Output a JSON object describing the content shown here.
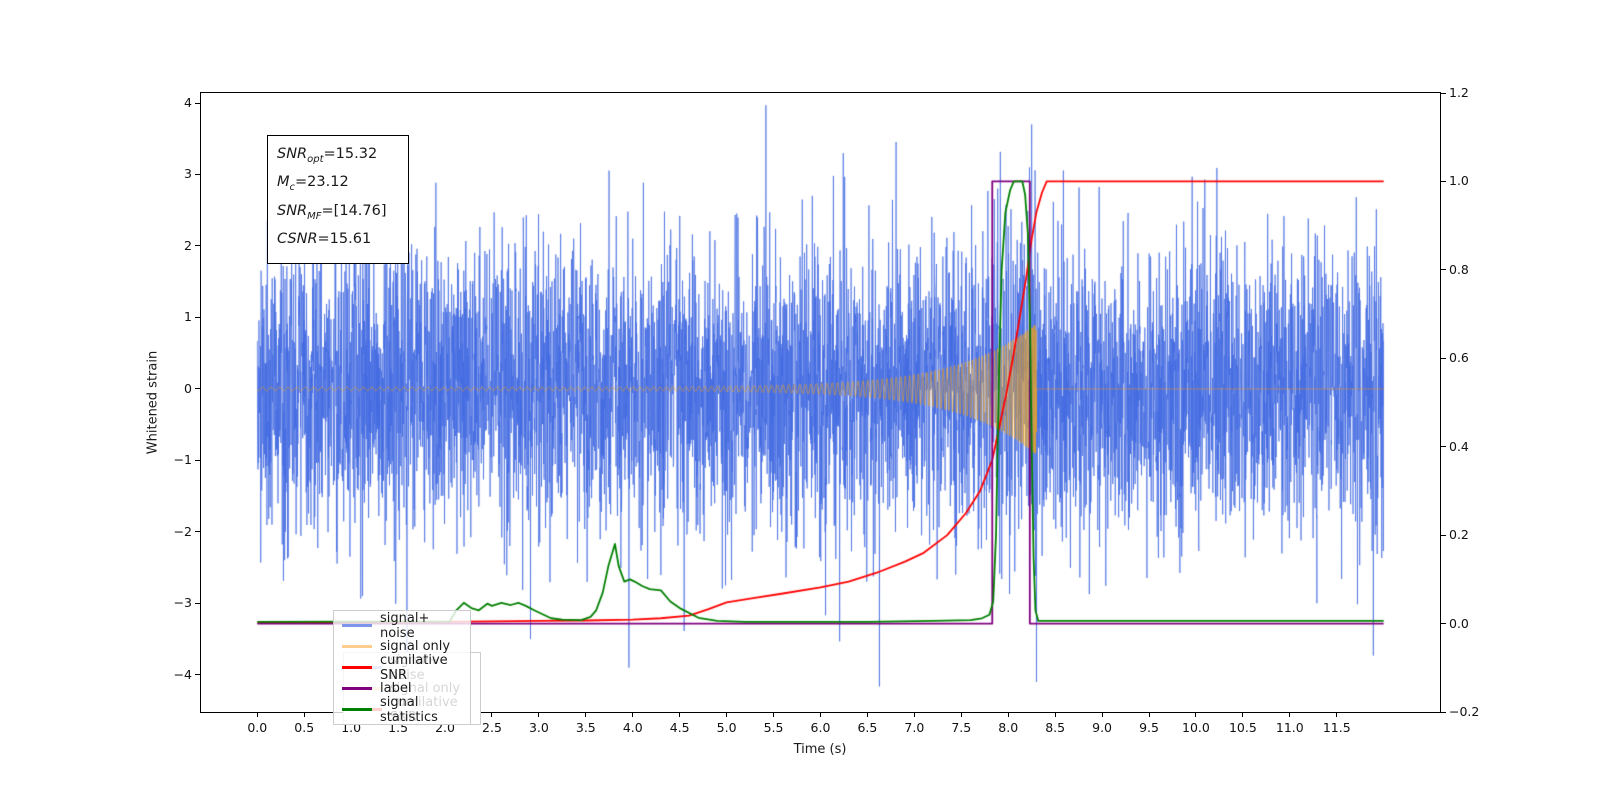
{
  "figure": {
    "background": "#ffffff"
  },
  "chart_data": {
    "type": "line",
    "title": "",
    "xlabel": "Time (s)",
    "ylabel_left": "Whitened strain",
    "ylabel_right": "",
    "xlim": [
      -0.6,
      12.6
    ],
    "ylim_left": [
      -4.52,
      4.14
    ],
    "ylim_right": [
      -0.2,
      1.2
    ],
    "grid": false,
    "x_ticks": [
      0.0,
      0.5,
      1.0,
      1.5,
      2.0,
      2.5,
      3.0,
      3.5,
      4.0,
      4.5,
      5.0,
      5.5,
      6.0,
      6.5,
      7.0,
      7.5,
      8.0,
      8.5,
      9.0,
      9.5,
      10.0,
      10.5,
      11.0,
      11.5
    ],
    "x_tick_decimals": 1,
    "y_ticks_left": [
      -4,
      -3,
      -2,
      -1,
      0,
      1,
      2,
      3,
      4
    ],
    "y_tick_left_decimals": 0,
    "y_ticks_right": [
      -0.2,
      0.0,
      0.2,
      0.4,
      0.6,
      0.8,
      1.0,
      1.2
    ],
    "y_tick_right_decimals": 1,
    "annotation_box": {
      "lines": [
        {
          "name": "SNR",
          "sub": "opt",
          "val": "=15.32"
        },
        {
          "name": "M",
          "sub": "c",
          "val": "=23.12"
        },
        {
          "name": "SNR",
          "sub": "MF",
          "val": "=[14.76]"
        },
        {
          "name": "CSNR",
          "sub": "",
          "val": "=15.61"
        }
      ]
    },
    "legend": {
      "position": "lower-left",
      "entries": [
        {
          "label": "signal+ noise",
          "color": "#7b96ea"
        },
        {
          "label": "signal only",
          "color": "#ffcd8c"
        },
        {
          "label": "cumilative SNR",
          "color": "#ff0000"
        },
        {
          "label": "label",
          "color": "#800080"
        },
        {
          "label": "signal statistics",
          "color": "#008000"
        }
      ]
    },
    "ghost_legend": {
      "note": "faint stale legend visible behind main legend",
      "entries": [
        {
          "label": "signal+ noise",
          "color": "#7b96ea"
        },
        {
          "label": "signal only",
          "color": "#ffcd8c"
        },
        {
          "label": "cumilative SNR",
          "color": "#ff0000"
        }
      ]
    },
    "series": {
      "signal_plus_noise": {
        "axis": "left",
        "color": "rgba(65,105,225,0.7)",
        "line_width": 1,
        "model": "gaussian_noise_plus_chirp",
        "sigma": 1.02,
        "seed": 1337,
        "t_start": 0,
        "t_end": 12.0,
        "dt": 0.00214,
        "spikes": [
          [
            2.91,
            -3.5
          ],
          [
            3.96,
            -3.9
          ],
          [
            8.25,
            3.7
          ],
          [
            8.3,
            -4.1
          ]
        ]
      },
      "signal_only": {
        "axis": "left",
        "color": "rgba(255,165,0,0.55)",
        "line_width": 1,
        "model": "chirp",
        "t_coalesce": 8.3,
        "t_end": 12.0,
        "dt": 0.0015,
        "amp_base": 0.025,
        "amp_scale": 0.9,
        "amp_tau": 0.8,
        "amp_max": 0.9,
        "freq_coef": 24,
        "freq_eps": 0.02,
        "freq_exp": -0.375
      },
      "cumulative_snr": {
        "axis": "right",
        "color": "#ff0000",
        "line_width": 1.8,
        "points": [
          [
            0,
            0.002
          ],
          [
            1,
            0.003
          ],
          [
            2,
            0.004
          ],
          [
            3,
            0.006
          ],
          [
            3.5,
            0.007
          ],
          [
            4,
            0.009
          ],
          [
            4.3,
            0.012
          ],
          [
            4.6,
            0.018
          ],
          [
            4.8,
            0.032
          ],
          [
            5,
            0.048
          ],
          [
            5.3,
            0.058
          ],
          [
            5.6,
            0.068
          ],
          [
            6,
            0.082
          ],
          [
            6.3,
            0.095
          ],
          [
            6.6,
            0.115
          ],
          [
            6.9,
            0.14
          ],
          [
            7.1,
            0.16
          ],
          [
            7.35,
            0.2
          ],
          [
            7.55,
            0.25
          ],
          [
            7.7,
            0.3
          ],
          [
            7.83,
            0.37
          ],
          [
            7.9,
            0.44
          ],
          [
            7.98,
            0.52
          ],
          [
            8.05,
            0.6
          ],
          [
            8.12,
            0.69
          ],
          [
            8.19,
            0.78
          ],
          [
            8.25,
            0.87
          ],
          [
            8.3,
            0.93
          ],
          [
            8.36,
            0.975
          ],
          [
            8.41,
            1.0
          ],
          [
            12,
            1.0
          ]
        ]
      },
      "label": {
        "axis": "right",
        "color": "#800080",
        "line_width": 1.8,
        "points": [
          [
            0,
            0
          ],
          [
            7.83,
            0
          ],
          [
            7.83,
            1
          ],
          [
            8.23,
            1
          ],
          [
            8.23,
            0
          ],
          [
            12,
            0
          ]
        ]
      },
      "signal_statistics": {
        "axis": "right",
        "color": "#008000",
        "line_width": 1.8,
        "points": [
          [
            0,
            0.004
          ],
          [
            2.05,
            0.005
          ],
          [
            2.12,
            0.03
          ],
          [
            2.2,
            0.047
          ],
          [
            2.28,
            0.035
          ],
          [
            2.36,
            0.03
          ],
          [
            2.45,
            0.045
          ],
          [
            2.5,
            0.04
          ],
          [
            2.6,
            0.047
          ],
          [
            2.7,
            0.042
          ],
          [
            2.78,
            0.047
          ],
          [
            2.86,
            0.04
          ],
          [
            2.95,
            0.03
          ],
          [
            3.05,
            0.02
          ],
          [
            3.13,
            0.012
          ],
          [
            3.25,
            0.009
          ],
          [
            3.45,
            0.008
          ],
          [
            3.55,
            0.015
          ],
          [
            3.61,
            0.03
          ],
          [
            3.68,
            0.07
          ],
          [
            3.74,
            0.13
          ],
          [
            3.81,
            0.18
          ],
          [
            3.85,
            0.13
          ],
          [
            3.91,
            0.095
          ],
          [
            3.97,
            0.1
          ],
          [
            4.02,
            0.095
          ],
          [
            4.1,
            0.085
          ],
          [
            4.18,
            0.078
          ],
          [
            4.3,
            0.075
          ],
          [
            4.4,
            0.05
          ],
          [
            4.5,
            0.035
          ],
          [
            4.7,
            0.013
          ],
          [
            4.9,
            0.006
          ],
          [
            5.2,
            0.004
          ],
          [
            6.5,
            0.004
          ],
          [
            7.2,
            0.006
          ],
          [
            7.6,
            0.008
          ],
          [
            7.72,
            0.012
          ],
          [
            7.8,
            0.02
          ],
          [
            7.84,
            0.05
          ],
          [
            7.87,
            0.2
          ],
          [
            7.9,
            0.55
          ],
          [
            7.93,
            0.8
          ],
          [
            7.97,
            0.93
          ],
          [
            8.02,
            0.98
          ],
          [
            8.06,
            1.0
          ],
          [
            8.15,
            1.0
          ],
          [
            8.18,
            0.97
          ],
          [
            8.21,
            0.88
          ],
          [
            8.23,
            0.7
          ],
          [
            8.25,
            0.4
          ],
          [
            8.27,
            0.15
          ],
          [
            8.29,
            0.03
          ],
          [
            8.32,
            0.006
          ],
          [
            12,
            0.006
          ]
        ]
      }
    }
  }
}
